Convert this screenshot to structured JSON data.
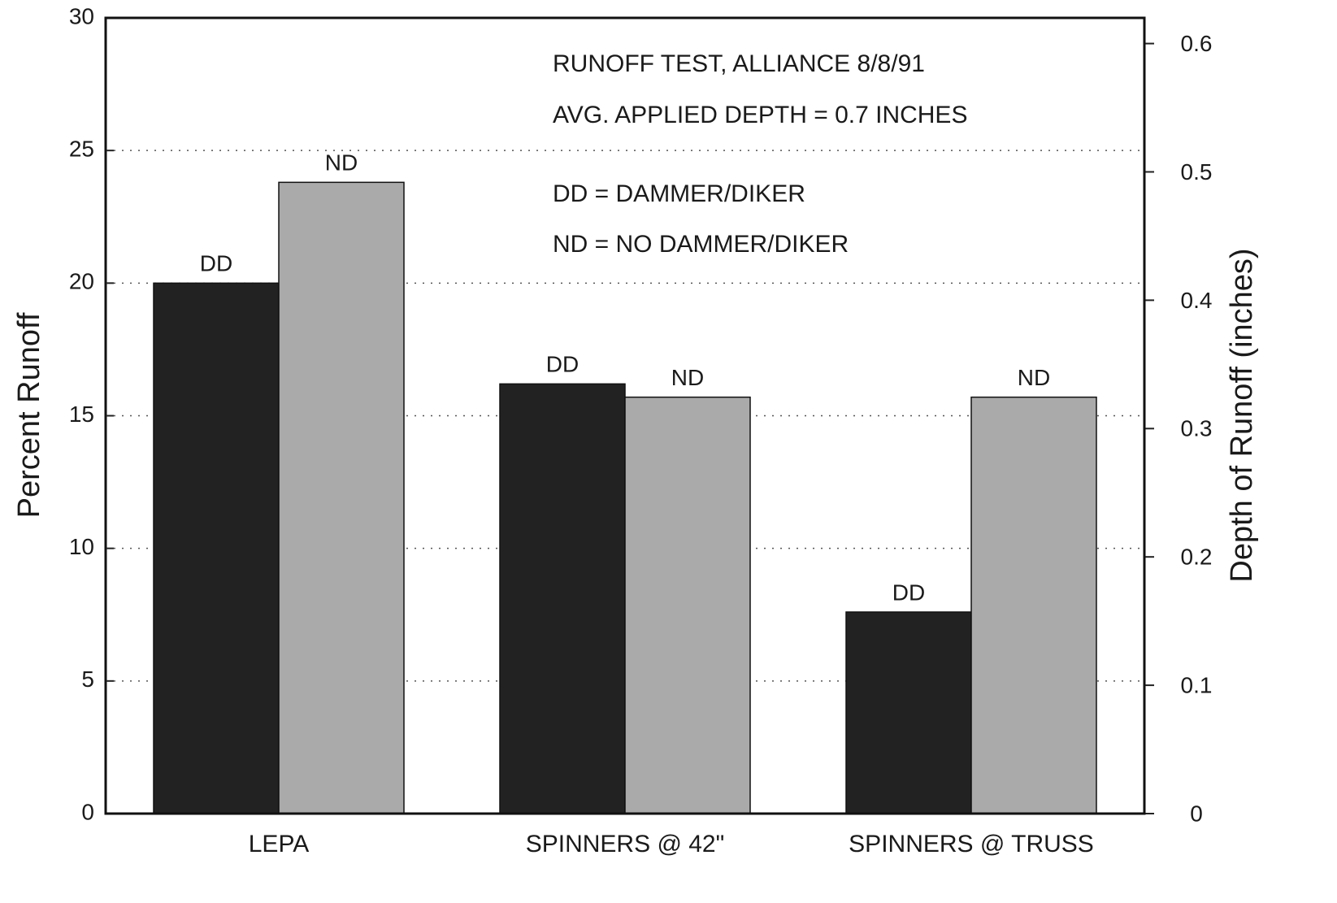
{
  "chart_data": {
    "type": "bar",
    "categories": [
      "LEPA",
      "SPINNERS @ 42\"",
      "SPINNERS @ TRUSS"
    ],
    "series": [
      {
        "name": "DD",
        "color": "#222222",
        "values": [
          20,
          16.2,
          7.6
        ]
      },
      {
        "name": "ND",
        "color": "#aaaaaa",
        "values": [
          23.8,
          15.7,
          15.7
        ]
      }
    ],
    "ylabel": "Percent Runoff",
    "y2label": "Depth of Runoff (inches)",
    "ylim": [
      0,
      30
    ],
    "yticks": [
      0,
      5,
      10,
      15,
      20,
      25,
      30
    ],
    "y2lim": [
      0,
      0.62
    ],
    "y2ticks": [
      0,
      0.1,
      0.2,
      0.3,
      0.4,
      0.5,
      0.6
    ],
    "annotations": [
      "RUNOFF TEST, ALLIANCE 8/8/91",
      "AVG. APPLIED DEPTH = 0.7 INCHES",
      "DD = DAMMER/DIKER",
      "ND = NO DAMMER/DIKER"
    ],
    "grid": true
  }
}
